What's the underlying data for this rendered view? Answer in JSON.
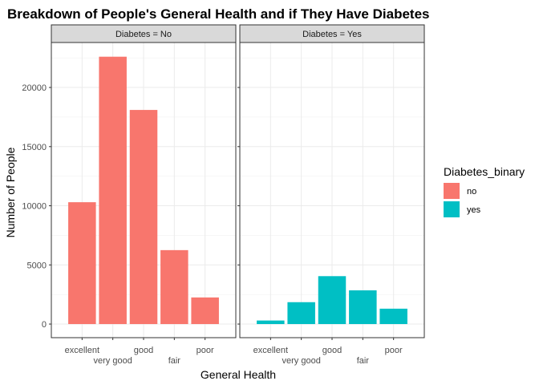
{
  "chart_data": {
    "type": "bar",
    "title": "Breakdown of People's General Health and if They Have Diabetes",
    "xlabel": "General Health",
    "ylabel": "Number of People",
    "categories": [
      "excellent",
      "very good",
      "good",
      "fair",
      "poor"
    ],
    "ylim": [
      -1150,
      23800
    ],
    "yticks": [
      0,
      5000,
      10000,
      15000,
      20000
    ],
    "grid": true,
    "legend": {
      "title": "Diabetes_binary",
      "placement": "right",
      "entries": [
        {
          "label": "no",
          "color": "#F8766D"
        },
        {
          "label": "yes",
          "color": "#00BFC4"
        }
      ]
    },
    "panels": [
      {
        "strip": "Diabetes = No",
        "fill_key": "no",
        "values": [
          10300,
          22600,
          18100,
          6250,
          2250
        ]
      },
      {
        "strip": "Diabetes = Yes",
        "fill_key": "yes",
        "values": [
          300,
          1850,
          4050,
          2850,
          1300
        ]
      }
    ]
  }
}
